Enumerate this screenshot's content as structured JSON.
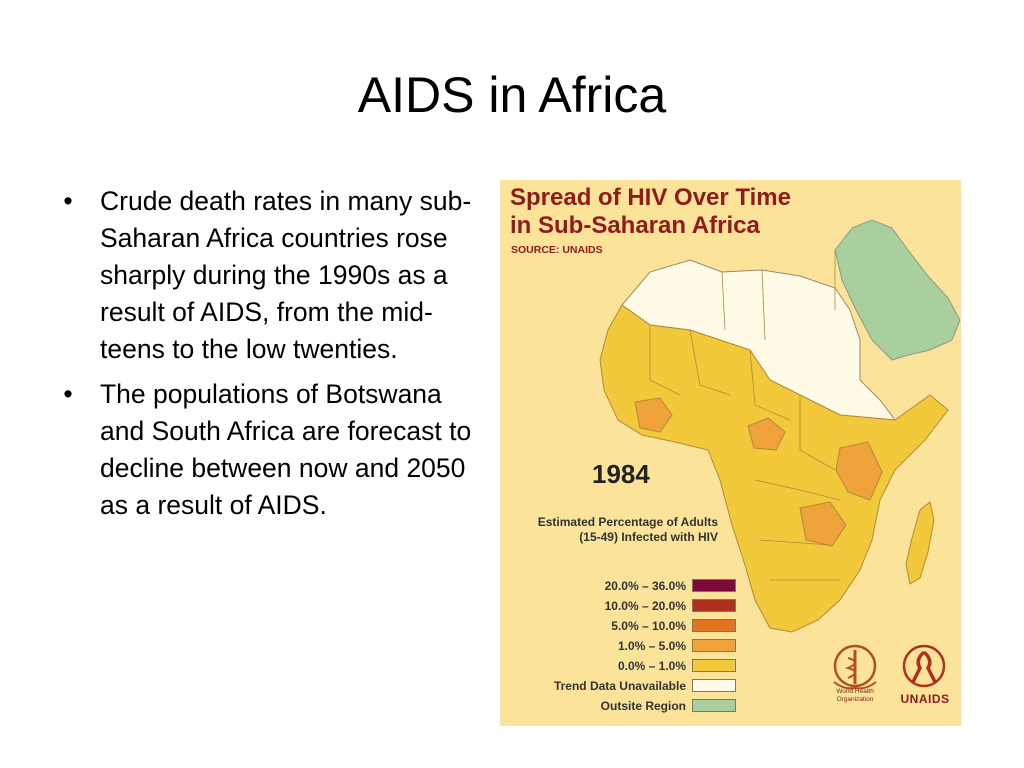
{
  "slide": {
    "title": "AIDS in Africa",
    "bullets": [
      "Crude death rates in many sub-Saharan Africa countries rose sharply during the 1990s as a result of AIDS, from the mid- teens to the low twenties.",
      "The populations of Botswana and South Africa are forecast to decline between now and 2050 as a result of AIDS."
    ],
    "bullet_glyph": "•"
  },
  "map": {
    "title_line1": "Spread of HIV Over Time",
    "title_line2": "in Sub-Saharan Africa",
    "source": "SOURCE: UNAIDS",
    "year": "1984",
    "legend_title": "Estimated Percentage of Adults (15-49) Infected with HIV",
    "legend": [
      {
        "label": "20.0% – 36.0%",
        "color": "#7d0a3c"
      },
      {
        "label": "10.0% – 20.0%",
        "color": "#b0301e"
      },
      {
        "label": "5.0% – 10.0%",
        "color": "#e0741f"
      },
      {
        "label": "1.0% –   5.0%",
        "color": "#f0a33a"
      },
      {
        "label": "0.0% –   1.0%",
        "color": "#f3c93c"
      },
      {
        "label": "Trend Data Unavailable",
        "color": "#fffbe6"
      },
      {
        "label": "Outsite Region",
        "color": "#a9cf9f"
      }
    ],
    "logos": {
      "who_text": "World Health Organization",
      "unaids_text": "UNAIDS"
    }
  }
}
